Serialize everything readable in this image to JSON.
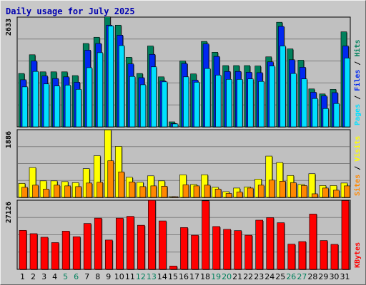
{
  "title": "Daily usage for July 2025",
  "colors": {
    "hits": "#00805c",
    "files": "#0028f0",
    "pages": "#00e0ff",
    "visits": "#ffff00",
    "sites": "#ff8800",
    "kbytes": "#ff0000",
    "weekend": "#00805c",
    "weekday": "#000000",
    "panel_bg": "#c0c0c0"
  },
  "chart_data": [
    {
      "type": "bar",
      "panel": "traffic",
      "categories": [
        "1",
        "2",
        "3",
        "4",
        "5",
        "6",
        "7",
        "8",
        "9",
        "10",
        "11",
        "12",
        "13",
        "14",
        "15",
        "16",
        "17",
        "18",
        "19",
        "20",
        "21",
        "22",
        "23",
        "24",
        "25",
        "26",
        "27",
        "28",
        "29",
        "30",
        "31"
      ],
      "weekend_days": [
        "5",
        "6",
        "12",
        "13",
        "19",
        "20",
        "26",
        "27"
      ],
      "ymax_label": "2633",
      "ylim": [
        0,
        2633
      ],
      "legend": [
        "Pages",
        "Files",
        "Hits"
      ],
      "series": [
        {
          "name": "Hits",
          "values": [
            1280,
            1730,
            1320,
            1320,
            1320,
            1230,
            2000,
            2150,
            2640,
            2440,
            1670,
            1280,
            1940,
            1200,
            120,
            1580,
            1270,
            2050,
            1790,
            1470,
            1470,
            1470,
            1460,
            1680,
            2510,
            1870,
            1600,
            910,
            790,
            900,
            2280
          ]
        },
        {
          "name": "Files",
          "values": [
            1130,
            1580,
            1220,
            1160,
            1200,
            1070,
            1840,
            2000,
            2440,
            2200,
            1510,
            1180,
            1740,
            1100,
            80,
            1520,
            1120,
            1990,
            1690,
            1330,
            1330,
            1310,
            1300,
            1560,
            2410,
            1610,
            1430,
            830,
            740,
            820,
            1940
          ]
        },
        {
          "name": "Pages",
          "values": [
            960,
            1330,
            1030,
            980,
            1000,
            900,
            1420,
            1780,
            2420,
            1950,
            1210,
            1010,
            1440,
            1080,
            70,
            1200,
            1070,
            1400,
            1240,
            1140,
            1140,
            1150,
            1090,
            1460,
            1940,
            1280,
            1150,
            680,
            440,
            560,
            1650
          ]
        }
      ]
    },
    {
      "type": "bar",
      "panel": "visitors",
      "ymax_label": "1886",
      "ylim": [
        0,
        1886
      ],
      "legend": [
        "Sites",
        "Visits"
      ],
      "series": [
        {
          "name": "Visits",
          "values": [
            390,
            830,
            460,
            460,
            440,
            410,
            800,
            1160,
            1880,
            1420,
            560,
            420,
            600,
            460,
            20,
            630,
            360,
            630,
            280,
            160,
            260,
            290,
            510,
            1150,
            970,
            610,
            360,
            660,
            330,
            330,
            400
          ]
        },
        {
          "name": "Sites",
          "values": [
            280,
            340,
            230,
            340,
            320,
            300,
            400,
            420,
            1020,
            710,
            430,
            300,
            320,
            310,
            20,
            350,
            320,
            340,
            230,
            110,
            150,
            260,
            340,
            480,
            450,
            410,
            330,
            100,
            260,
            200,
            320
          ]
        }
      ]
    },
    {
      "type": "bar",
      "panel": "bandwidth",
      "ymax_label": "27126",
      "ylim": [
        0,
        27126
      ],
      "legend": [
        "KBytes"
      ],
      "series": [
        {
          "name": "KBytes",
          "values": [
            15300,
            14000,
            12600,
            10500,
            15000,
            12800,
            18000,
            20100,
            11500,
            20100,
            20800,
            17300,
            27100,
            19000,
            1300,
            16400,
            13400,
            26900,
            16800,
            15700,
            15200,
            13400,
            19300,
            20300,
            18300,
            9900,
            10900,
            21700,
            11300,
            9800,
            27000
          ]
        }
      ]
    }
  ]
}
